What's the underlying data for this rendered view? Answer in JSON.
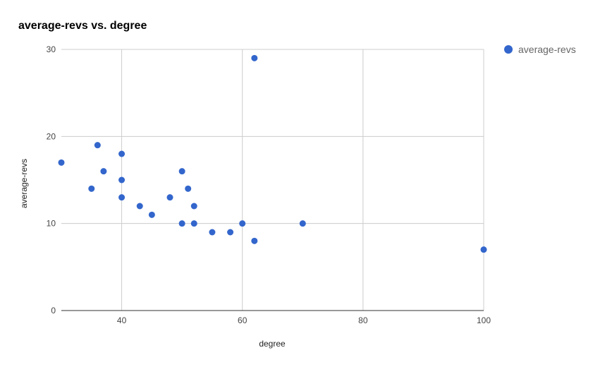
{
  "chart_data": {
    "type": "scatter",
    "title": "average-revs vs. degree",
    "xlabel": "degree",
    "ylabel": "average-revs",
    "xlim": [
      30,
      100
    ],
    "ylim": [
      0,
      30
    ],
    "x_ticks": [
      40,
      60,
      80,
      100
    ],
    "y_ticks": [
      0,
      10,
      20,
      30
    ],
    "grid": true,
    "legend_position": "right",
    "series": [
      {
        "name": "average-revs",
        "color": "#3366cc",
        "points": [
          {
            "x": 30,
            "y": 17
          },
          {
            "x": 35,
            "y": 14
          },
          {
            "x": 36,
            "y": 19
          },
          {
            "x": 37,
            "y": 16
          },
          {
            "x": 40,
            "y": 18
          },
          {
            "x": 40,
            "y": 15
          },
          {
            "x": 40,
            "y": 13
          },
          {
            "x": 43,
            "y": 12
          },
          {
            "x": 45,
            "y": 11
          },
          {
            "x": 48,
            "y": 13
          },
          {
            "x": 50,
            "y": 16
          },
          {
            "x": 50,
            "y": 10
          },
          {
            "x": 51,
            "y": 14
          },
          {
            "x": 52,
            "y": 12
          },
          {
            "x": 52,
            "y": 10
          },
          {
            "x": 55,
            "y": 9
          },
          {
            "x": 58,
            "y": 9
          },
          {
            "x": 60,
            "y": 10
          },
          {
            "x": 62,
            "y": 29
          },
          {
            "x": 62,
            "y": 8
          },
          {
            "x": 70,
            "y": 10
          },
          {
            "x": 100,
            "y": 7
          }
        ]
      }
    ]
  }
}
